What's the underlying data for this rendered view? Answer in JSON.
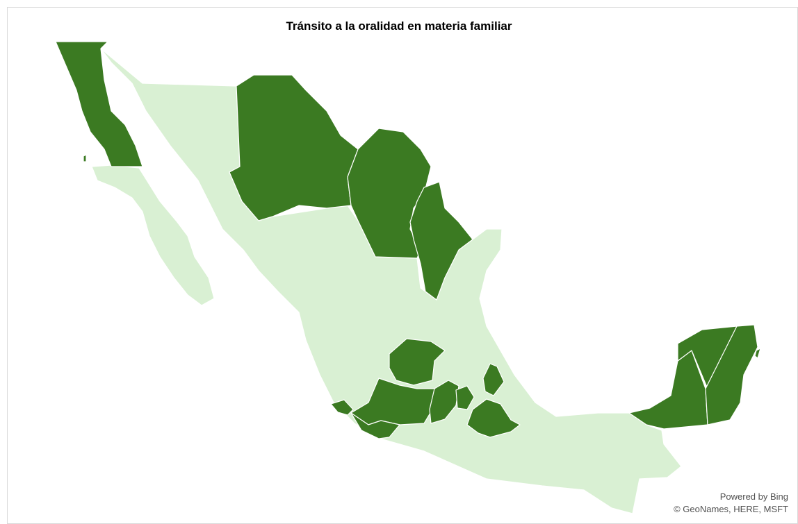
{
  "map": {
    "title": "Tránsito a la oralidad en materia familiar",
    "credits": {
      "powered_by": "Powered by Bing",
      "copyright": "© GeoNames, HERE, MSFT"
    },
    "colors": {
      "transitioned": "#3b7a22",
      "not_transitioned": "#d9f0d3",
      "border": "#ffffff",
      "background": "#ffffff"
    },
    "regions": [
      {
        "id": "baja-california",
        "status": "transitioned"
      },
      {
        "id": "chihuahua",
        "status": "transitioned"
      },
      {
        "id": "coahuila",
        "status": "transitioned"
      },
      {
        "id": "nuevo-leon",
        "status": "transitioned"
      },
      {
        "id": "guanajuato",
        "status": "transitioned"
      },
      {
        "id": "michoacan",
        "status": "transitioned"
      },
      {
        "id": "colima",
        "status": "transitioned"
      },
      {
        "id": "guerrero",
        "status": "transitioned"
      },
      {
        "id": "mexico",
        "status": "transitioned"
      },
      {
        "id": "morelos",
        "status": "transitioned"
      },
      {
        "id": "hidalgo",
        "status": "transitioned"
      },
      {
        "id": "puebla",
        "status": "transitioned"
      },
      {
        "id": "campeche",
        "status": "transitioned"
      },
      {
        "id": "yucatan",
        "status": "transitioned"
      },
      {
        "id": "quintana-roo",
        "status": "transitioned"
      }
    ]
  }
}
